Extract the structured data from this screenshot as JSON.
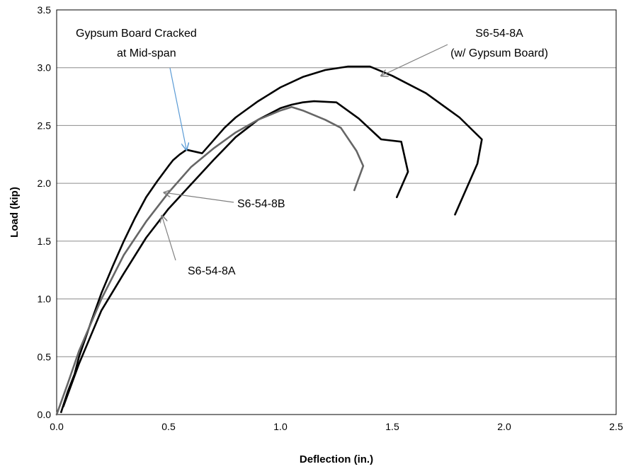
{
  "chart_data": {
    "type": "line",
    "title": "",
    "xlabel": "Deflection (in.)",
    "ylabel": "Load (kip)",
    "xlim": [
      0,
      2.5
    ],
    "ylim": [
      0,
      3.5
    ],
    "xticks": [
      "0.0",
      "0.5",
      "1.0",
      "1.5",
      "2.0",
      "2.5"
    ],
    "yticks": [
      "0.0",
      "0.5",
      "1.0",
      "1.5",
      "2.0",
      "2.5",
      "3.0",
      "3.5"
    ],
    "grid": true,
    "legend": "none",
    "series": [
      {
        "name": "S6-54-8A (w/ Gypsum Board)",
        "color": "#000000",
        "x": [
          0.02,
          0.05,
          0.08,
          0.1,
          0.15,
          0.2,
          0.25,
          0.3,
          0.35,
          0.4,
          0.45,
          0.5,
          0.52,
          0.55,
          0.58,
          0.65,
          0.7,
          0.75,
          0.8,
          0.85,
          0.9,
          0.95,
          1.0,
          1.1,
          1.2,
          1.3,
          1.4,
          1.5,
          1.65,
          1.8,
          1.9,
          1.88,
          1.78
        ],
        "y": [
          0.02,
          0.2,
          0.35,
          0.5,
          0.78,
          1.05,
          1.28,
          1.5,
          1.7,
          1.88,
          2.02,
          2.15,
          2.2,
          2.25,
          2.29,
          2.26,
          2.37,
          2.48,
          2.57,
          2.64,
          2.71,
          2.77,
          2.83,
          2.92,
          2.98,
          3.01,
          3.01,
          2.93,
          2.78,
          2.57,
          2.38,
          2.17,
          1.73
        ]
      },
      {
        "name": "S6-54-8A",
        "color": "#000000",
        "x": [
          0.03,
          0.1,
          0.2,
          0.3,
          0.4,
          0.5,
          0.6,
          0.7,
          0.8,
          0.9,
          1.0,
          1.05,
          1.1,
          1.15,
          1.25,
          1.35,
          1.45,
          1.54,
          1.57,
          1.52
        ],
        "y": [
          0.07,
          0.44,
          0.9,
          1.22,
          1.53,
          1.78,
          1.99,
          2.2,
          2.4,
          2.55,
          2.65,
          2.68,
          2.7,
          2.71,
          2.7,
          2.56,
          2.38,
          2.36,
          2.1,
          1.88
        ]
      },
      {
        "name": "S6-54-8B",
        "color": "#666666",
        "x": [
          0.0,
          0.05,
          0.1,
          0.2,
          0.3,
          0.4,
          0.5,
          0.6,
          0.7,
          0.8,
          0.9,
          1.0,
          1.05,
          1.1,
          1.2,
          1.27,
          1.34,
          1.37,
          1.33
        ],
        "y": [
          0.0,
          0.27,
          0.55,
          1.0,
          1.38,
          1.67,
          1.92,
          2.14,
          2.3,
          2.44,
          2.55,
          2.63,
          2.66,
          2.63,
          2.55,
          2.48,
          2.28,
          2.15,
          1.94
        ]
      }
    ],
    "annotations": [
      {
        "text_lines": [
          "Gypsum Board Cracked",
          "at Mid-span"
        ],
        "target": [
          0.58,
          2.29
        ],
        "arrow_color": "#5b9bd5"
      },
      {
        "text_lines": [
          "S6-54-8A",
          "(w/ Gypsum Board)"
        ],
        "target": [
          1.45,
          2.93
        ],
        "arrow_color": "#808080"
      },
      {
        "text_lines": [
          "S6-54-8B"
        ],
        "target": [
          0.48,
          1.92
        ],
        "arrow_color": "#808080"
      },
      {
        "text_lines": [
          "S6-54-8A"
        ],
        "target": [
          0.47,
          1.72
        ],
        "arrow_color": "#808080"
      }
    ]
  }
}
